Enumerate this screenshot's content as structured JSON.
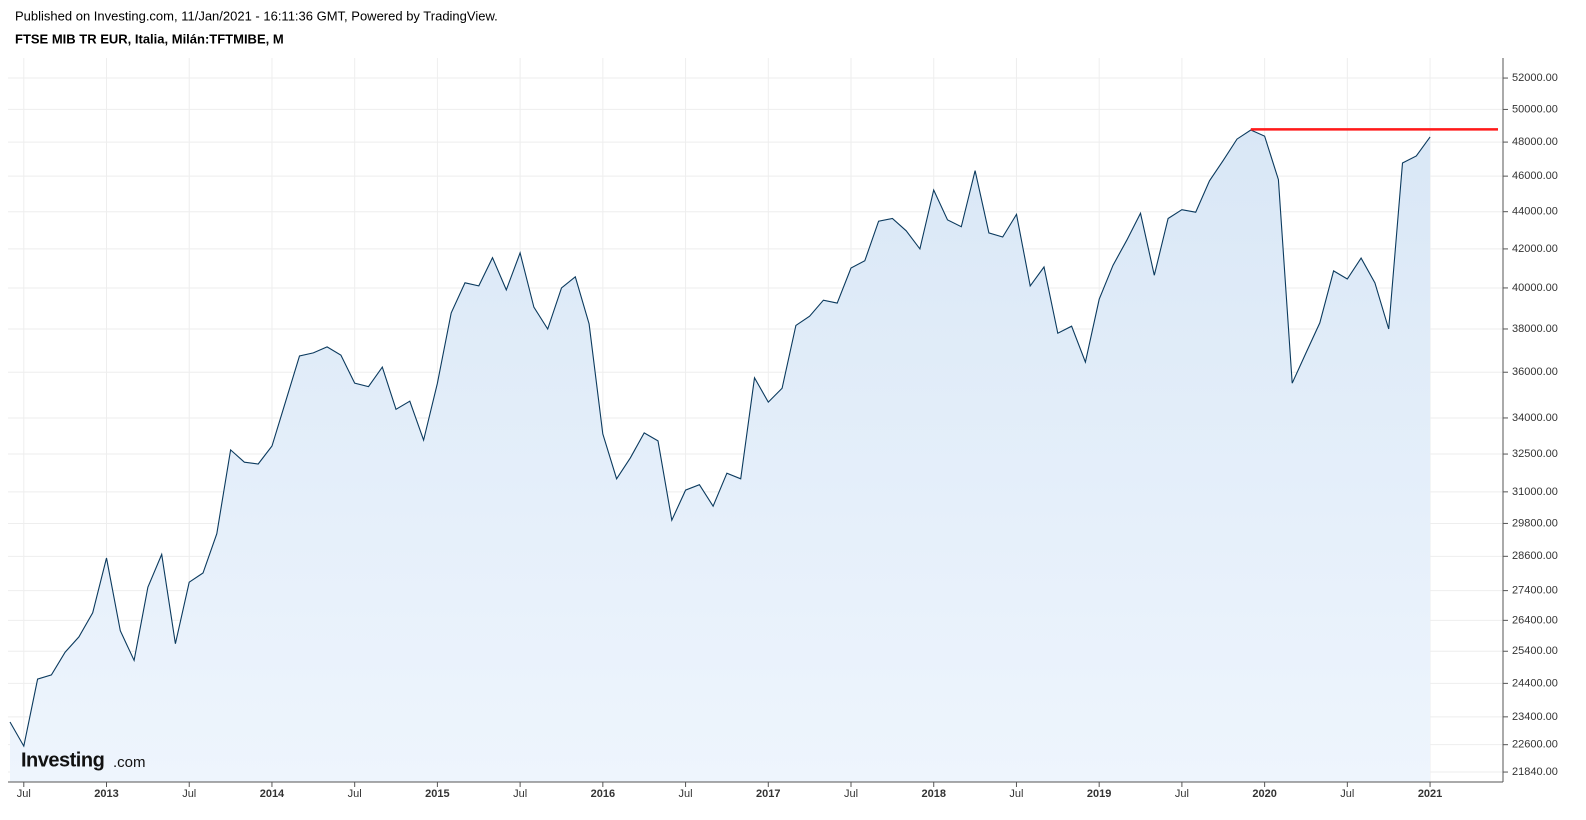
{
  "chart_data": {
    "type": "area",
    "published": "Published on Investing.com, 11/Jan/2021 - 16:11:36 GMT, Powered by TradingView.",
    "title": "FTSE MIB TR EUR, Italia, Milán:TFTMIBE, M",
    "watermark": [
      "Investing",
      ".com"
    ],
    "log_scale": true,
    "grid": true,
    "color": "#0b3a5e",
    "fill_color": "#dde9f6",
    "x": [
      "2012-06",
      "2012-07",
      "2012-08",
      "2012-09",
      "2012-10",
      "2012-11",
      "2012-12",
      "2013-01",
      "2013-02",
      "2013-03",
      "2013-04",
      "2013-05",
      "2013-06",
      "2013-07",
      "2013-08",
      "2013-09",
      "2013-10",
      "2013-11",
      "2013-12",
      "2014-01",
      "2014-02",
      "2014-03",
      "2014-04",
      "2014-05",
      "2014-06",
      "2014-07",
      "2014-08",
      "2014-09",
      "2014-10",
      "2014-11",
      "2014-12",
      "2015-01",
      "2015-02",
      "2015-03",
      "2015-04",
      "2015-05",
      "2015-06",
      "2015-07",
      "2015-08",
      "2015-09",
      "2015-10",
      "2015-11",
      "2015-12",
      "2016-01",
      "2016-02",
      "2016-03",
      "2016-04",
      "2016-05",
      "2016-06",
      "2016-07",
      "2016-08",
      "2016-09",
      "2016-10",
      "2016-11",
      "2016-12",
      "2017-01",
      "2017-02",
      "2017-03",
      "2017-04",
      "2017-05",
      "2017-06",
      "2017-07",
      "2017-08",
      "2017-09",
      "2017-10",
      "2017-11",
      "2017-12",
      "2018-01",
      "2018-02",
      "2018-03",
      "2018-04",
      "2018-05",
      "2018-06",
      "2018-07",
      "2018-08",
      "2018-09",
      "2018-10",
      "2018-11",
      "2018-12",
      "2019-01",
      "2019-02",
      "2019-03",
      "2019-04",
      "2019-05",
      "2019-06",
      "2019-07",
      "2019-08",
      "2019-09",
      "2019-10",
      "2019-11",
      "2019-12",
      "2020-01",
      "2020-02",
      "2020-03",
      "2020-04",
      "2020-05",
      "2020-06",
      "2020-07",
      "2020-08",
      "2020-09",
      "2020-10",
      "2020-11",
      "2020-12",
      "2021-01"
    ],
    "values": [
      23250,
      22560,
      24530,
      24660,
      25370,
      25860,
      26650,
      28540,
      26060,
      25110,
      27520,
      28670,
      25640,
      27690,
      28010,
      29420,
      32670,
      32170,
      32100,
      32830,
      34720,
      36740,
      36880,
      37160,
      36780,
      35510,
      35360,
      36230,
      34370,
      34720,
      33070,
      35510,
      38770,
      40260,
      40100,
      41540,
      39900,
      41790,
      39050,
      38000,
      40000,
      40560,
      38240,
      33330,
      31510,
      32350,
      33370,
      33040,
      29920,
      31070,
      31280,
      30450,
      31730,
      31510,
      35750,
      34680,
      35290,
      38170,
      38610,
      39390,
      39250,
      41010,
      41380,
      43480,
      43630,
      42960,
      42000,
      45210,
      43550,
      43180,
      46320,
      42850,
      42630,
      43850,
      40100,
      41060,
      37800,
      38130,
      36460,
      39440,
      41150,
      42460,
      43920,
      40640,
      43630,
      44110,
      43970,
      45730,
      46920,
      48180,
      48730,
      48360,
      45800,
      35510,
      36880,
      38290,
      40860,
      40450,
      41520,
      40260,
      38000,
      46760,
      47170,
      48310
    ],
    "hline": {
      "value": 48770,
      "x_start": "2019-12",
      "color": "#ff1a1a"
    },
    "xlim": [
      "2012-06",
      "2021-06"
    ],
    "xticks": [
      {
        "value": "2012-07",
        "label": "Jul"
      },
      {
        "value": "2013-01",
        "label": "2013"
      },
      {
        "value": "2013-07",
        "label": "Jul"
      },
      {
        "value": "2014-01",
        "label": "2014"
      },
      {
        "value": "2014-07",
        "label": "Jul"
      },
      {
        "value": "2015-01",
        "label": "2015"
      },
      {
        "value": "2015-07",
        "label": "Jul"
      },
      {
        "value": "2016-01",
        "label": "2016"
      },
      {
        "value": "2016-07",
        "label": "Jul"
      },
      {
        "value": "2017-01",
        "label": "2017"
      },
      {
        "value": "2017-07",
        "label": "Jul"
      },
      {
        "value": "2018-01",
        "label": "2018"
      },
      {
        "value": "2018-07",
        "label": "Jul"
      },
      {
        "value": "2019-01",
        "label": "2019"
      },
      {
        "value": "2019-07",
        "label": "Jul"
      },
      {
        "value": "2020-01",
        "label": "2020"
      },
      {
        "value": "2020-07",
        "label": "Jul"
      },
      {
        "value": "2021-01",
        "label": "2021"
      }
    ],
    "ylim": [
      21570,
      53320
    ],
    "yticks": [
      {
        "value": 21840,
        "label": "21840.00"
      },
      {
        "value": 22600,
        "label": "22600.00"
      },
      {
        "value": 23400,
        "label": "23400.00"
      },
      {
        "value": 24400,
        "label": "24400.00"
      },
      {
        "value": 25400,
        "label": "25400.00"
      },
      {
        "value": 26400,
        "label": "26400.00"
      },
      {
        "value": 27400,
        "label": "27400.00"
      },
      {
        "value": 28600,
        "label": "28600.00"
      },
      {
        "value": 29800,
        "label": "29800.00"
      },
      {
        "value": 31000,
        "label": "31000.00"
      },
      {
        "value": 32500,
        "label": "32500.00"
      },
      {
        "value": 34000,
        "label": "34000.00"
      },
      {
        "value": 36000,
        "label": "36000.00"
      },
      {
        "value": 38000,
        "label": "38000.00"
      },
      {
        "value": 40000,
        "label": "40000.00"
      },
      {
        "value": 42000,
        "label": "42000.00"
      },
      {
        "value": 44000,
        "label": "44000.00"
      },
      {
        "value": 46000,
        "label": "46000.00"
      },
      {
        "value": 48000,
        "label": "48000.00"
      },
      {
        "value": 50000,
        "label": "50000.00"
      },
      {
        "value": 52000,
        "label": "52000.00"
      }
    ]
  }
}
